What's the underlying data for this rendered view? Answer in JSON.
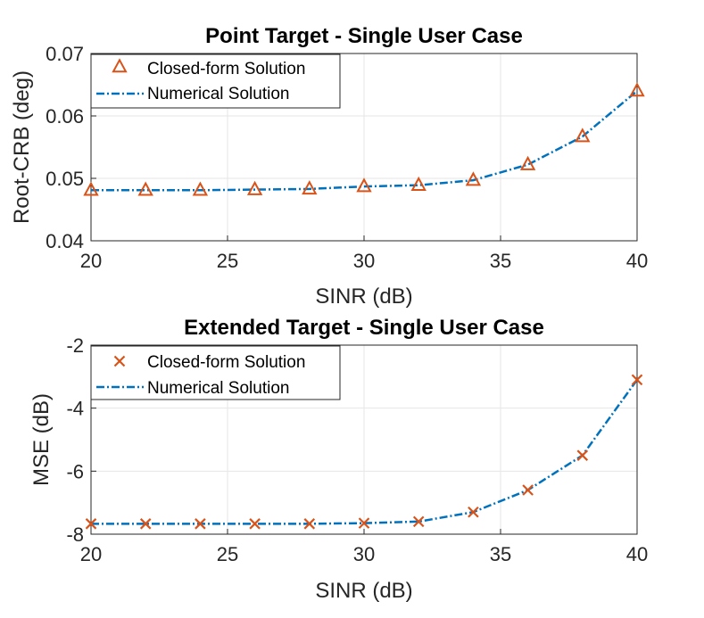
{
  "colors": {
    "closed_form": "#d95319",
    "numerical": "#0072bd",
    "axis": "#262626",
    "grid": "#e6e6e6"
  },
  "chart_data": [
    {
      "type": "line",
      "title": "Point Target - Single User Case",
      "xlabel": "SINR (dB)",
      "ylabel": "Root-CRB (deg)",
      "xlim": [
        20,
        40
      ],
      "ylim": [
        0.04,
        0.07
      ],
      "xticks": [
        20,
        25,
        30,
        35,
        40
      ],
      "xtick_labels": [
        "20",
        "25",
        "30",
        "35",
        "40"
      ],
      "yticks": [
        0.04,
        0.05,
        0.06,
        0.07
      ],
      "ytick_labels": [
        "0.04",
        "0.05",
        "0.06",
        "0.07"
      ],
      "grid": true,
      "legend_position": "top-left",
      "x": [
        20,
        22,
        24,
        26,
        28,
        30,
        32,
        34,
        36,
        38,
        40
      ],
      "series": [
        {
          "name": "Closed-form Solution",
          "style": "markers",
          "marker": "triangle",
          "values": [
            0.0481,
            0.0481,
            0.0481,
            0.0482,
            0.0483,
            0.0487,
            0.0489,
            0.0497,
            0.0522,
            0.0567,
            0.064
          ]
        },
        {
          "name": "Numerical Solution",
          "style": "dash-dot",
          "values": [
            0.0481,
            0.0481,
            0.0481,
            0.0482,
            0.0483,
            0.0487,
            0.0489,
            0.0497,
            0.0522,
            0.0567,
            0.064
          ]
        }
      ]
    },
    {
      "type": "line",
      "title": "Extended Target - Single User Case",
      "xlabel": "SINR (dB)",
      "ylabel": "MSE (dB)",
      "xlim": [
        20,
        40
      ],
      "ylim": [
        -8,
        -2
      ],
      "xticks": [
        20,
        25,
        30,
        35,
        40
      ],
      "xtick_labels": [
        "20",
        "25",
        "30",
        "35",
        "40"
      ],
      "yticks": [
        -8,
        -6,
        -4,
        -2
      ],
      "ytick_labels": [
        "-8",
        "-6",
        "-4",
        "-2"
      ],
      "grid": true,
      "legend_position": "top-left",
      "x": [
        20,
        22,
        24,
        26,
        28,
        30,
        32,
        34,
        36,
        38,
        40
      ],
      "series": [
        {
          "name": "Closed-form Solution",
          "style": "markers",
          "marker": "x",
          "values": [
            -7.67,
            -7.67,
            -7.67,
            -7.67,
            -7.67,
            -7.65,
            -7.6,
            -7.3,
            -6.6,
            -5.5,
            -3.1
          ]
        },
        {
          "name": "Numerical Solution",
          "style": "dash-dot",
          "values": [
            -7.67,
            -7.67,
            -7.67,
            -7.67,
            -7.67,
            -7.65,
            -7.6,
            -7.3,
            -6.6,
            -5.5,
            -3.1
          ]
        }
      ]
    }
  ]
}
